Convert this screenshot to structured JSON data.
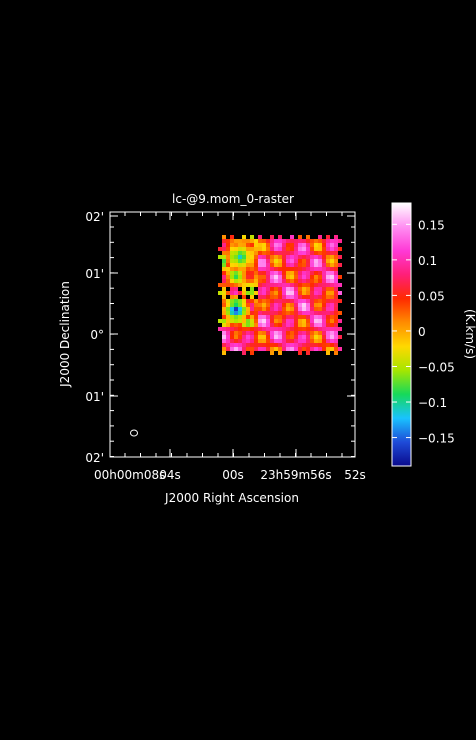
{
  "chart_data": {
    "type": "heatmap",
    "title": "lc-@9.mom_0-raster",
    "xlabel": "J2000 Right Ascension",
    "ylabel": "J2000 Declination",
    "x_ticks": [
      {
        "label": "00h00m08s"
      },
      {
        "label": "04s"
      },
      {
        "label": "00s"
      },
      {
        "label": "23h59m56s"
      },
      {
        "label": "52s"
      }
    ],
    "y_ticks": [
      {
        "label": "02'"
      },
      {
        "label": "01'"
      },
      {
        "label": "0°"
      },
      {
        "label": "01'"
      },
      {
        "label": "02'"
      }
    ],
    "colorbar": {
      "label": "(K.km/s)",
      "range": [
        -0.19,
        0.18
      ],
      "ticks": [
        {
          "value": 0.15,
          "label": "0.15"
        },
        {
          "value": 0.1,
          "label": "0.1"
        },
        {
          "value": 0.05,
          "label": "0.05"
        },
        {
          "value": 0,
          "label": "0"
        },
        {
          "value": -0.05,
          "label": "−0.05"
        },
        {
          "value": -0.1,
          "label": "−0.1"
        },
        {
          "value": -0.15,
          "label": "−0.15"
        }
      ],
      "colormap": [
        "#0a0a8c",
        "#1e4bd8",
        "#19c3ff",
        "#16d95a",
        "#a6e600",
        "#ffd800",
        "#ff8c00",
        "#ff2a00",
        "#ff1f78",
        "#ff39d6",
        "#ff8ff2",
        "#ffffff"
      ]
    },
    "beam_marker": "ellipse",
    "grid": false
  }
}
